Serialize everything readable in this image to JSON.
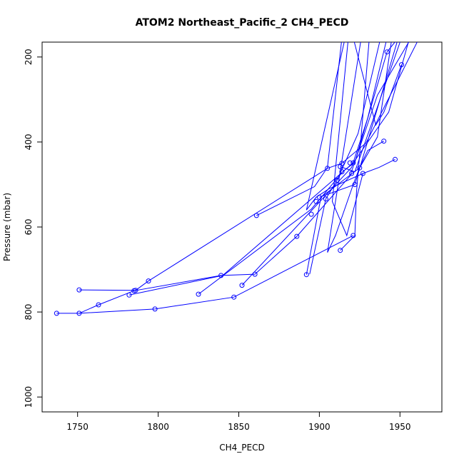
{
  "chart_data": {
    "type": "line",
    "title": "ATOM2 Northeast_Pacific_2 CH4_PECD",
    "xlabel": "CH4_PECD",
    "ylabel": "Pressure (mbar)",
    "xlim": [
      1728,
      1976
    ],
    "ylim": [
      1035,
      165
    ],
    "y_reversed": true,
    "grid": false,
    "legend": "none",
    "x_ticks": [
      1750,
      1800,
      1850,
      1900,
      1950
    ],
    "y_ticks": [
      200,
      400,
      600,
      800,
      1000
    ],
    "series_color": "#0000ff",
    "segments": [
      [
        [
          1737,
          803
        ],
        [
          1751,
          803
        ],
        [
          1798,
          793
        ],
        [
          1847,
          765
        ],
        [
          1921,
          620
        ]
      ],
      [
        [
          1751,
          803
        ],
        [
          1763,
          783
        ],
        [
          1785,
          750
        ],
        [
          1839,
          714
        ],
        [
          1860,
          711
        ],
        [
          1886,
          622
        ],
        [
          1919,
          480
        ],
        [
          1936,
          290
        ],
        [
          1957,
          155
        ]
      ],
      [
        [
          1751,
          748
        ],
        [
          1786,
          749
        ],
        [
          1794,
          727
        ],
        [
          1905,
          462
        ],
        [
          1914,
          450
        ],
        [
          1929,
          402
        ],
        [
          1962,
          155
        ]
      ],
      [
        [
          1782,
          760
        ],
        [
          1840,
          714
        ],
        [
          1921,
          449
        ],
        [
          1943,
          330
        ],
        [
          1956,
          155
        ]
      ],
      [
        [
          1825,
          758
        ],
        [
          1895,
          558
        ],
        [
          1915,
          468
        ],
        [
          1922,
          448
        ],
        [
          1942,
          188
        ],
        [
          1949,
          155
        ]
      ],
      [
        [
          1852,
          737
        ],
        [
          1920,
          460
        ],
        [
          1930,
          344
        ],
        [
          1942,
          155
        ]
      ],
      [
        [
          1861,
          573
        ],
        [
          1897,
          505
        ],
        [
          1905,
          460
        ],
        [
          1914,
          155
        ]
      ],
      [
        [
          1892,
          712
        ],
        [
          1901,
          530
        ],
        [
          1925,
          461
        ],
        [
          1936,
          388
        ],
        [
          1945,
          155
        ]
      ],
      [
        [
          1913,
          655
        ],
        [
          1922,
          620
        ],
        [
          1923,
          520
        ],
        [
          1931,
          155
        ]
      ],
      [
        [
          1894,
          711
        ],
        [
          1904,
          534
        ],
        [
          1911,
          490
        ],
        [
          1924,
          380
        ],
        [
          1938,
          155
        ]
      ],
      [
        [
          1927,
          474
        ],
        [
          1917,
          620
        ],
        [
          1908,
          540
        ],
        [
          1918,
          155
        ]
      ],
      [
        [
          1940,
          398
        ],
        [
          1930,
          420
        ],
        [
          1925,
          460
        ],
        [
          1921,
          500
        ],
        [
          1910,
          620
        ],
        [
          1905,
          660
        ],
        [
          1926,
          155
        ]
      ],
      [
        [
          1947,
          441
        ],
        [
          1937,
          460
        ],
        [
          1927,
          474
        ],
        [
          1906,
          510
        ],
        [
          1898,
          530
        ],
        [
          1892,
          560
        ],
        [
          1916,
          155
        ]
      ],
      [
        [
          1951,
          218
        ],
        [
          1943,
          300
        ],
        [
          1940,
          330
        ],
        [
          1935,
          360
        ],
        [
          1921,
          155
        ]
      ],
      [
        [
          1900,
          530
        ],
        [
          1922,
          500
        ],
        [
          1949,
          155
        ]
      ],
      [
        [
          1913,
          458
        ],
        [
          1922,
          470
        ],
        [
          1951,
          155
        ]
      ]
    ],
    "points": [
      [
        1737,
        803
      ],
      [
        1751,
        803
      ],
      [
        1798,
        793
      ],
      [
        1847,
        765
      ],
      [
        1921,
        620
      ],
      [
        1763,
        783
      ],
      [
        1785,
        750
      ],
      [
        1839,
        714
      ],
      [
        1860,
        711
      ],
      [
        1886,
        622
      ],
      [
        1751,
        748
      ],
      [
        1786,
        749
      ],
      [
        1794,
        727
      ],
      [
        1905,
        462
      ],
      [
        1914,
        450
      ],
      [
        1782,
        760
      ],
      [
        1825,
        758
      ],
      [
        1852,
        737
      ],
      [
        1861,
        573
      ],
      [
        1892,
        712
      ],
      [
        1913,
        655
      ],
      [
        1895,
        570
      ],
      [
        1900,
        530
      ],
      [
        1904,
        534
      ],
      [
        1911,
        490
      ],
      [
        1914,
        470
      ],
      [
        1919,
        449
      ],
      [
        1921,
        449
      ],
      [
        1922,
        500
      ],
      [
        1925,
        461
      ],
      [
        1927,
        474
      ],
      [
        1940,
        398
      ],
      [
        1942,
        188
      ],
      [
        1947,
        441
      ],
      [
        1951,
        218
      ],
      [
        1913,
        458
      ],
      [
        1920,
        474
      ],
      [
        1898,
        540
      ]
    ]
  }
}
